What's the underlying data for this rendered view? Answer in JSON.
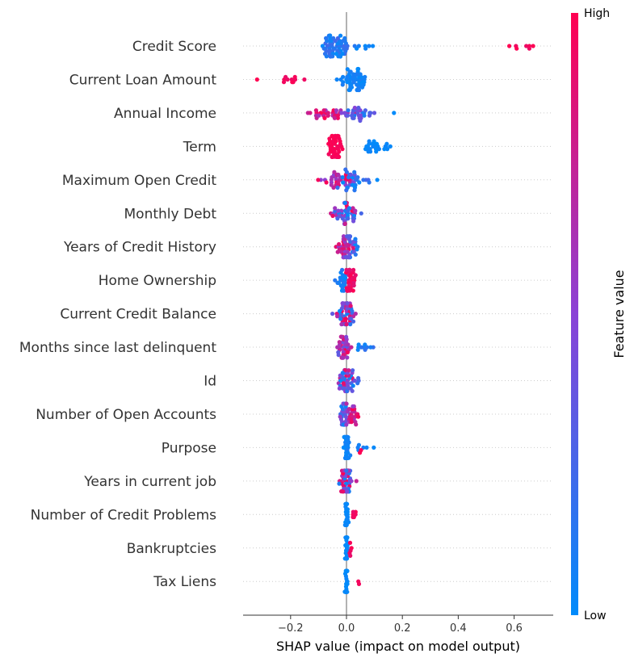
{
  "chart_data": {
    "type": "scatter",
    "subtype": "shap-beeswarm",
    "title": "",
    "xlabel": "SHAP value (impact on model output)",
    "xlim": [
      -0.37,
      0.74
    ],
    "xticks": [
      {
        "value": -0.2,
        "label": "−0.2"
      },
      {
        "value": 0.0,
        "label": "0.0"
      },
      {
        "value": 0.2,
        "label": "0.2"
      },
      {
        "value": 0.4,
        "label": "0.4"
      },
      {
        "value": 0.6,
        "label": "0.6"
      }
    ],
    "colorbar": {
      "label": "Feature value",
      "high_label": "High",
      "low_label": "Low",
      "high_color": "#ff0051",
      "mid_color": "#8a42d6",
      "low_color": "#008bfb"
    },
    "zero_line_color": "#999999",
    "features": [
      {
        "name": "Credit Score",
        "clusters": [
          {
            "center": -0.04,
            "spread": 0.05,
            "n": 60,
            "fmin": 0.0,
            "fmax": 0.25
          },
          {
            "center": 0.07,
            "spread": 0.04,
            "n": 6,
            "fmin": 0.0,
            "fmax": 0.1
          },
          {
            "center": 0.64,
            "spread": 0.06,
            "n": 7,
            "fmin": 0.9,
            "fmax": 1.0
          }
        ]
      },
      {
        "name": "Current Loan Amount",
        "clusters": [
          {
            "center": 0.03,
            "spread": 0.05,
            "n": 55,
            "fmin": 0.0,
            "fmax": 0.1
          },
          {
            "center": -0.2,
            "spread": 0.04,
            "n": 10,
            "fmin": 0.9,
            "fmax": 1.0
          },
          {
            "center": -0.32,
            "spread": 0.0,
            "n": 1,
            "fmin": 1.0,
            "fmax": 1.0
          }
        ]
      },
      {
        "name": "Annual Income",
        "clusters": [
          {
            "center": -0.06,
            "spread": 0.08,
            "n": 30,
            "fmin": 0.55,
            "fmax": 1.0
          },
          {
            "center": 0.04,
            "spread": 0.06,
            "n": 30,
            "fmin": 0.0,
            "fmax": 0.5
          },
          {
            "center": 0.17,
            "spread": 0.0,
            "n": 1,
            "fmin": 0.0,
            "fmax": 0.0
          }
        ]
      },
      {
        "name": "Term",
        "clusters": [
          {
            "center": -0.04,
            "spread": 0.03,
            "n": 45,
            "fmin": 0.95,
            "fmax": 1.0
          },
          {
            "center": 0.1,
            "spread": 0.07,
            "n": 25,
            "fmin": 0.0,
            "fmax": 0.05
          }
        ]
      },
      {
        "name": "Maximum Open Credit",
        "clusters": [
          {
            "center": -0.03,
            "spread": 0.06,
            "n": 30,
            "fmin": 0.5,
            "fmax": 1.0
          },
          {
            "center": 0.02,
            "spread": 0.05,
            "n": 30,
            "fmin": 0.0,
            "fmax": 0.45
          },
          {
            "center": 0.11,
            "spread": 0.0,
            "n": 1,
            "fmin": 0.0,
            "fmax": 0.0
          }
        ]
      },
      {
        "name": "Monthly Debt",
        "clusters": [
          {
            "center": 0.0,
            "spread": 0.04,
            "n": 50,
            "fmin": 0.0,
            "fmax": 1.0
          }
        ]
      },
      {
        "name": "Years of Credit History",
        "clusters": [
          {
            "center": -0.01,
            "spread": 0.03,
            "n": 30,
            "fmin": 0.5,
            "fmax": 1.0
          },
          {
            "center": 0.02,
            "spread": 0.03,
            "n": 25,
            "fmin": 0.0,
            "fmax": 0.5
          }
        ]
      },
      {
        "name": "Home Ownership",
        "clusters": [
          {
            "center": -0.02,
            "spread": 0.02,
            "n": 20,
            "fmin": 0.0,
            "fmax": 0.15
          },
          {
            "center": 0.015,
            "spread": 0.02,
            "n": 30,
            "fmin": 0.85,
            "fmax": 1.0
          }
        ]
      },
      {
        "name": "Current Credit Balance",
        "clusters": [
          {
            "center": 0.0,
            "spread": 0.035,
            "n": 50,
            "fmin": 0.0,
            "fmax": 1.0
          }
        ]
      },
      {
        "name": "Months since last delinquent",
        "clusters": [
          {
            "center": -0.01,
            "spread": 0.02,
            "n": 35,
            "fmin": 0.3,
            "fmax": 1.0
          },
          {
            "center": 0.05,
            "spread": 0.04,
            "n": 10,
            "fmin": 0.0,
            "fmax": 0.2
          }
        ]
      },
      {
        "name": "Id",
        "clusters": [
          {
            "center": 0.0,
            "spread": 0.04,
            "n": 50,
            "fmin": 0.0,
            "fmax": 1.0
          }
        ]
      },
      {
        "name": "Number of Open Accounts",
        "clusters": [
          {
            "center": -0.01,
            "spread": 0.02,
            "n": 25,
            "fmin": 0.0,
            "fmax": 0.5
          },
          {
            "center": 0.02,
            "spread": 0.03,
            "n": 25,
            "fmin": 0.5,
            "fmax": 1.0
          }
        ]
      },
      {
        "name": "Purpose",
        "clusters": [
          {
            "center": 0.0,
            "spread": 0.01,
            "n": 40,
            "fmin": 0.0,
            "fmax": 0.1
          },
          {
            "center": 0.06,
            "spread": 0.025,
            "n": 6,
            "fmin": 0.0,
            "fmax": 0.1
          },
          {
            "center": 0.05,
            "spread": 0.0,
            "n": 2,
            "fmin": 0.95,
            "fmax": 1.0
          }
        ]
      },
      {
        "name": "Years in current job",
        "clusters": [
          {
            "center": 0.0,
            "spread": 0.025,
            "n": 40,
            "fmin": 0.0,
            "fmax": 1.0
          }
        ]
      },
      {
        "name": "Number of Credit Problems",
        "clusters": [
          {
            "center": 0.0,
            "spread": 0.005,
            "n": 40,
            "fmin": 0.0,
            "fmax": 0.05
          },
          {
            "center": 0.025,
            "spread": 0.01,
            "n": 6,
            "fmin": 0.9,
            "fmax": 1.0
          }
        ]
      },
      {
        "name": "Bankruptcies",
        "clusters": [
          {
            "center": 0.0,
            "spread": 0.005,
            "n": 40,
            "fmin": 0.0,
            "fmax": 0.05
          },
          {
            "center": 0.012,
            "spread": 0.008,
            "n": 5,
            "fmin": 0.9,
            "fmax": 1.0
          }
        ]
      },
      {
        "name": "Tax Liens",
        "clusters": [
          {
            "center": 0.0,
            "spread": 0.004,
            "n": 40,
            "fmin": 0.0,
            "fmax": 0.05
          },
          {
            "center": 0.045,
            "spread": 0.006,
            "n": 2,
            "fmin": 0.95,
            "fmax": 1.0
          }
        ]
      }
    ]
  }
}
